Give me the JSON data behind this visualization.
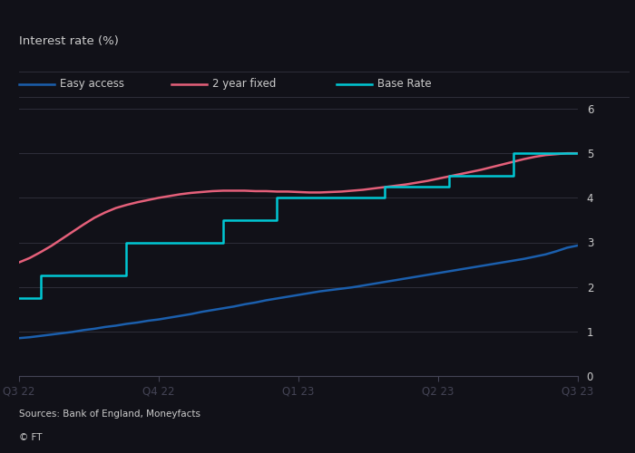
{
  "title": "Interest rate (%)",
  "source": "Sources: Bank of England, Moneyfacts",
  "copyright": "© FT",
  "ylim": [
    0,
    6
  ],
  "yticks": [
    0,
    1,
    2,
    3,
    4,
    5,
    6
  ],
  "xtick_positions": [
    0,
    13,
    26,
    39,
    52
  ],
  "xtick_labels": [
    "Q3 22",
    "Q4 22",
    "Q1 23",
    "Q2 23",
    "Q3 23"
  ],
  "fig_bg": "#111118",
  "plot_bg": "#111118",
  "grid_color": "#2e2e3a",
  "text_color": "#cccccc",
  "axis_color": "#444455",
  "easy_access_color": "#1b5fad",
  "fixed_color": "#e5607a",
  "base_rate_color": "#00c8d4",
  "easy_access_x": [
    0,
    1,
    2,
    3,
    4,
    5,
    6,
    7,
    8,
    9,
    10,
    11,
    12,
    13,
    14,
    15,
    16,
    17,
    18,
    19,
    20,
    21,
    22,
    23,
    24,
    25,
    26,
    27,
    28,
    29,
    30,
    31,
    32,
    33,
    34,
    35,
    36,
    37,
    38,
    39,
    40,
    41,
    42,
    43,
    44,
    45,
    46,
    47,
    48,
    49,
    50,
    51,
    52
  ],
  "easy_access_y": [
    0.85,
    0.87,
    0.9,
    0.93,
    0.96,
    0.99,
    1.03,
    1.06,
    1.1,
    1.13,
    1.17,
    1.2,
    1.24,
    1.27,
    1.31,
    1.35,
    1.39,
    1.44,
    1.48,
    1.52,
    1.56,
    1.61,
    1.65,
    1.7,
    1.74,
    1.78,
    1.82,
    1.86,
    1.9,
    1.93,
    1.96,
    1.99,
    2.03,
    2.07,
    2.11,
    2.15,
    2.19,
    2.23,
    2.27,
    2.31,
    2.35,
    2.39,
    2.43,
    2.47,
    2.51,
    2.55,
    2.59,
    2.63,
    2.68,
    2.73,
    2.8,
    2.88,
    2.93
  ],
  "fixed_2yr_x": [
    0,
    1,
    2,
    3,
    4,
    5,
    6,
    7,
    8,
    9,
    10,
    11,
    12,
    13,
    14,
    15,
    16,
    17,
    18,
    19,
    20,
    21,
    22,
    23,
    24,
    25,
    26,
    27,
    28,
    29,
    30,
    31,
    32,
    33,
    34,
    35,
    36,
    37,
    38,
    39,
    40,
    41,
    42,
    43,
    44,
    45,
    46,
    47,
    48,
    49,
    50,
    51,
    52
  ],
  "fixed_2yr_y": [
    2.55,
    2.65,
    2.78,
    2.92,
    3.08,
    3.24,
    3.4,
    3.55,
    3.67,
    3.77,
    3.84,
    3.9,
    3.95,
    4.0,
    4.04,
    4.08,
    4.11,
    4.13,
    4.15,
    4.16,
    4.16,
    4.16,
    4.15,
    4.15,
    4.14,
    4.14,
    4.13,
    4.12,
    4.12,
    4.13,
    4.14,
    4.16,
    4.18,
    4.21,
    4.24,
    4.27,
    4.3,
    4.34,
    4.38,
    4.43,
    4.48,
    4.53,
    4.58,
    4.63,
    4.69,
    4.75,
    4.81,
    4.87,
    4.92,
    4.96,
    4.98,
    5.0,
    5.0
  ],
  "base_rate_x": [
    0,
    2,
    2,
    6,
    6,
    10,
    10,
    19,
    19,
    24,
    24,
    34,
    34,
    40,
    40,
    46,
    46,
    52
  ],
  "base_rate_y": [
    1.75,
    1.75,
    2.25,
    2.25,
    2.25,
    2.25,
    3.0,
    3.0,
    3.5,
    3.5,
    4.0,
    4.0,
    4.25,
    4.25,
    4.5,
    4.5,
    5.0,
    5.0
  ]
}
